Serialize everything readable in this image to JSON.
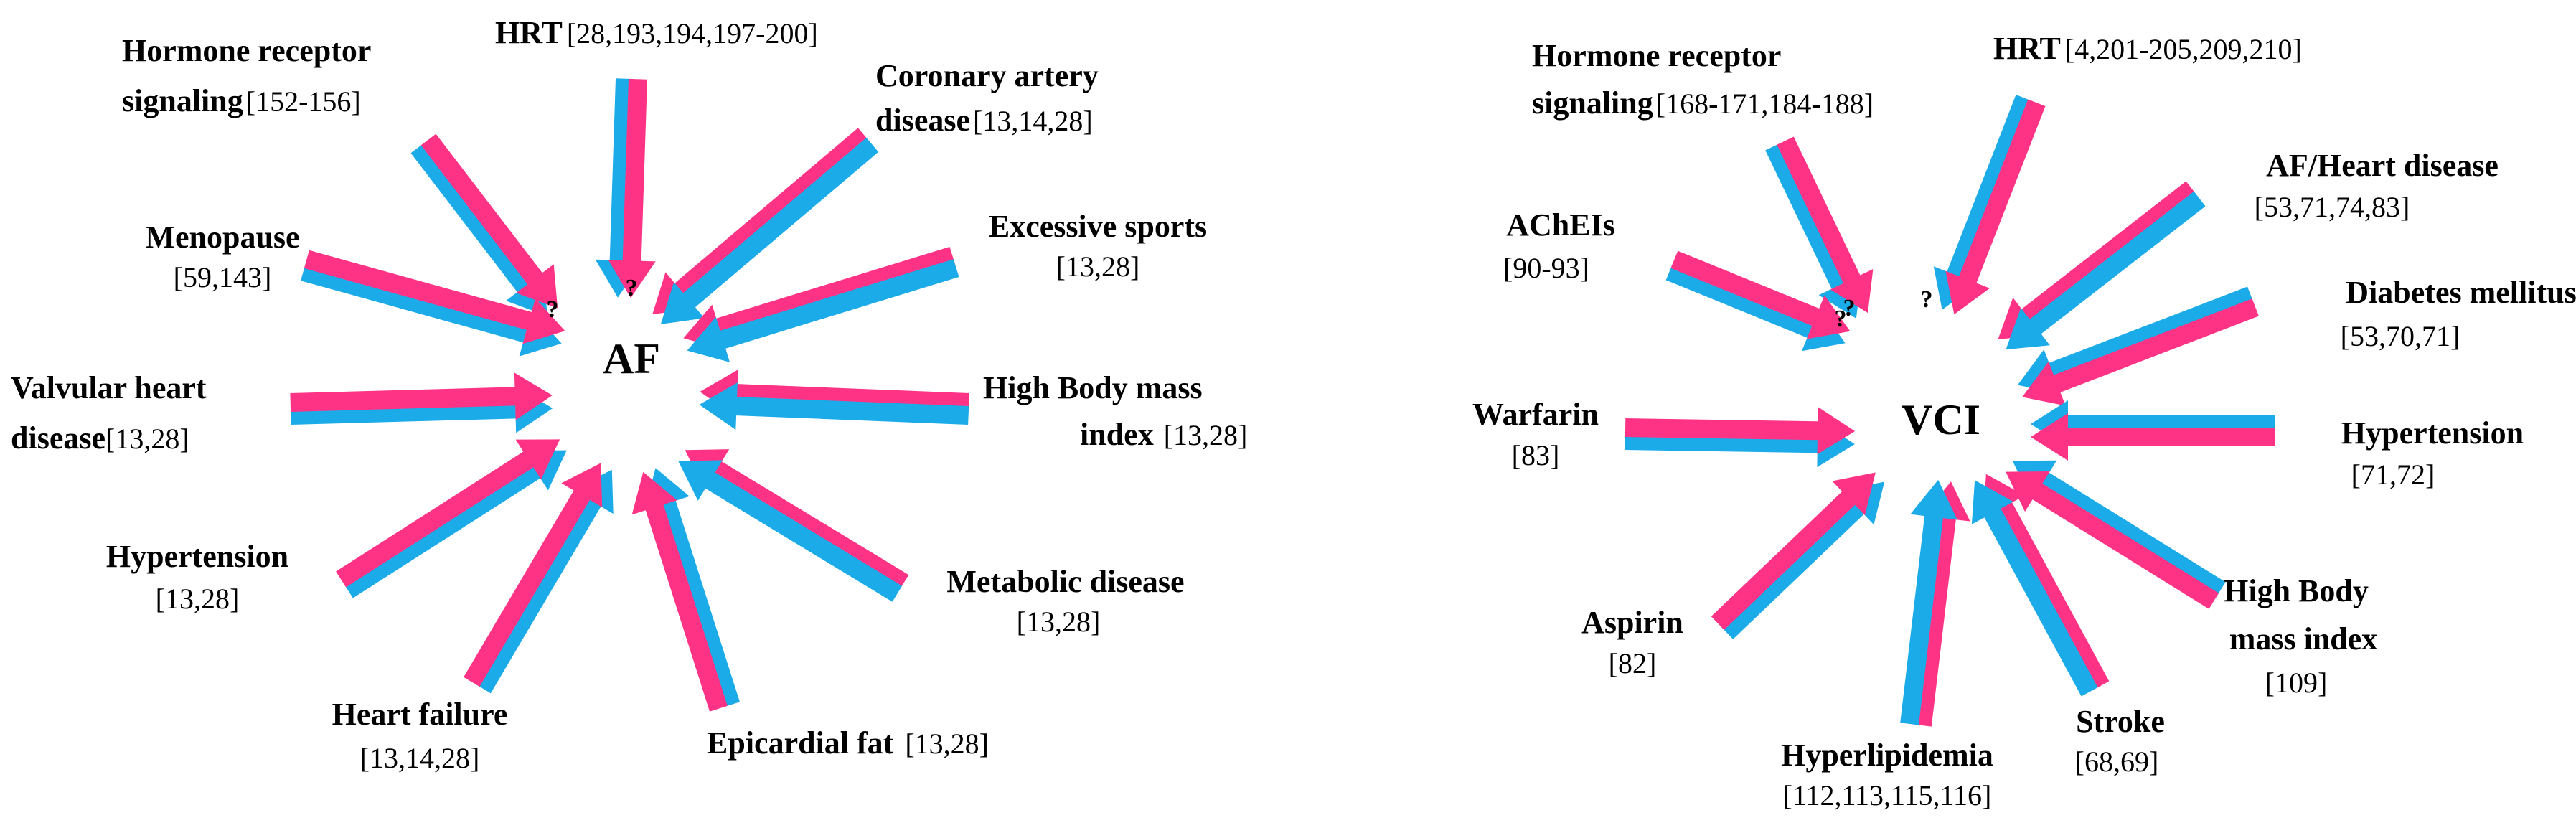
{
  "colors": {
    "pink": "#ff3385",
    "blue": "#1aabe8"
  },
  "panels": [
    {
      "center": "AF",
      "labels": {
        "hrt": {
          "name": "HRT",
          "refs": "[28,193,194,197-200]"
        },
        "hormone": {
          "name_line1": "Hormone receptor",
          "name_line2": "signaling",
          "refs": "[152-156]"
        },
        "coronary": {
          "name_line1": "Coronary artery",
          "name_line2": "disease",
          "refs": "[13,14,28]"
        },
        "menopause": {
          "name": "Menopause",
          "refs": "[59,143]"
        },
        "sports": {
          "name": "Excessive sports",
          "refs": "[13,28]"
        },
        "valvular": {
          "name_line1": "Valvular heart",
          "name_line2": "disease",
          "refs": "[13,28]"
        },
        "bmi": {
          "name_line1": "High Body mass",
          "name_line2": "index",
          "refs": "[13,28]"
        },
        "hypertension": {
          "name": "Hypertension",
          "refs": "[13,28]"
        },
        "metabolic": {
          "name": "Metabolic disease",
          "refs": "[13,28]"
        },
        "heartfailure": {
          "name": "Heart failure",
          "refs": "[13,14,28]"
        },
        "epicardial": {
          "name": "Epicardial fat",
          "refs": "[13,28]"
        }
      },
      "question_marks": [
        "?",
        "?"
      ]
    },
    {
      "center": "VCI",
      "labels": {
        "hormone": {
          "name_line1": "Hormone receptor",
          "name_line2": "signaling",
          "refs": "[168-171,184-188]"
        },
        "hrt": {
          "name": "HRT",
          "refs": "[4,201-205,209,210]"
        },
        "afheart": {
          "name": "AF/Heart disease",
          "refs": "[53,71,74,83]"
        },
        "acheis": {
          "name": "AChEIs",
          "refs": "[90-93]"
        },
        "diabetes": {
          "name": "Diabetes mellitus",
          "refs": "[53,70,71]"
        },
        "warfarin": {
          "name": "Warfarin",
          "refs": "[83]"
        },
        "hypertension": {
          "name": "Hypertension",
          "refs": "[71,72]"
        },
        "aspirin": {
          "name": "Aspirin",
          "refs": "[82]"
        },
        "bmi": {
          "name_line1": "High Body",
          "name_line2": "mass index",
          "refs": "[109]"
        },
        "hyperlipidemia": {
          "name": "Hyperlipidemia",
          "refs": "[112,113,115,116]"
        },
        "stroke": {
          "name": "Stroke",
          "refs": "[68,69]"
        }
      },
      "question_marks": [
        "?",
        "?",
        "?"
      ]
    }
  ]
}
